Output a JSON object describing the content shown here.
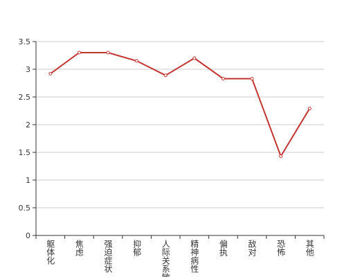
{
  "chart_data": {
    "type": "line",
    "categories": [
      "躯体化",
      "焦虑",
      "强迫症状",
      "抑郁",
      "人际关系敏感",
      "精神病性",
      "偏执",
      "敌对",
      "恐怖",
      "其他"
    ],
    "values": [
      2.92,
      3.3,
      3.3,
      3.15,
      2.89,
      3.2,
      2.83,
      2.83,
      1.43,
      2.29
    ],
    "color": "#c23531",
    "ylim": [
      0,
      3.5
    ],
    "yticks": [
      0,
      0.5,
      1,
      1.5,
      2,
      2.5,
      3,
      3.5
    ],
    "grid": true
  }
}
